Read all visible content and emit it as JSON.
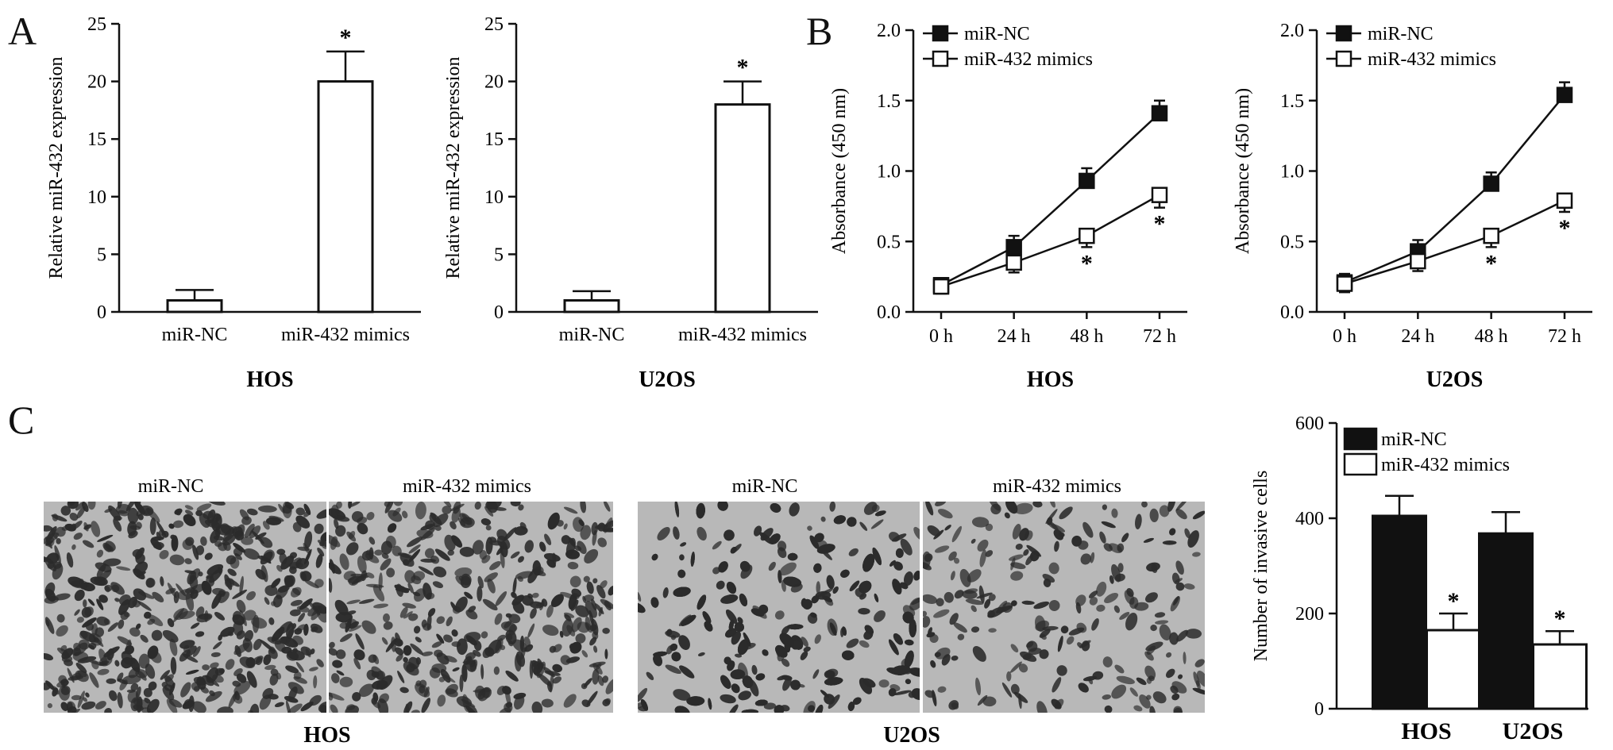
{
  "panel_labels": {
    "a": "A",
    "b": "B",
    "c": "C"
  },
  "micrographs": {
    "hos": {
      "label_left": "miR-NC",
      "label_right": "miR-432 mimics",
      "cell_line": "HOS"
    },
    "u2os": {
      "label_left": "miR-NC",
      "label_right": "miR-432 mimics",
      "cell_line": "U2OS"
    },
    "colors": {
      "background": "#b8b8b8",
      "cells": "#2b2b2b"
    }
  },
  "chart_data": [
    {
      "id": "a1",
      "type": "bar",
      "categories": [
        "miR-NC",
        "miR-432 mimics"
      ],
      "values": [
        1.0,
        20.0
      ],
      "errors": [
        0.9,
        2.6
      ],
      "significance": [
        "",
        "*"
      ],
      "bar_fill": [
        "#ffffff",
        "#ffffff"
      ],
      "xlabel": "HOS",
      "ylabel": "Relative miR-432 expression",
      "ylim": [
        0,
        25
      ],
      "yticks": [
        0,
        5,
        10,
        15,
        20,
        25
      ]
    },
    {
      "id": "a2",
      "type": "bar",
      "categories": [
        "miR-NC",
        "miR-432 mimics"
      ],
      "values": [
        1.0,
        18.0
      ],
      "errors": [
        0.8,
        2.0
      ],
      "significance": [
        "",
        "*"
      ],
      "bar_fill": [
        "#ffffff",
        "#ffffff"
      ],
      "xlabel": "U2OS",
      "ylabel": "Relative miR-432 expression",
      "ylim": [
        0,
        25
      ],
      "yticks": [
        0,
        5,
        10,
        15,
        20,
        25
      ]
    },
    {
      "id": "b1",
      "type": "line",
      "x": [
        "0 h",
        "24 h",
        "48 h",
        "72 h"
      ],
      "series": [
        {
          "name": "miR-NC",
          "values": [
            0.19,
            0.46,
            0.93,
            1.41
          ],
          "errors": [
            0.05,
            0.08,
            0.09,
            0.09
          ],
          "marker": "filled-square"
        },
        {
          "name": "miR-432 mimics",
          "values": [
            0.18,
            0.35,
            0.54,
            0.83
          ],
          "errors": [
            0.05,
            0.07,
            0.08,
            0.09
          ],
          "marker": "open-square"
        }
      ],
      "significance": [
        "",
        "",
        "*",
        "*"
      ],
      "xlabel": "HOS",
      "ylabel": "Absorbance (450 nm)",
      "ylim": [
        0,
        2.0
      ],
      "yticks": [
        "0.0",
        "0.5",
        "1.0",
        "1.5",
        "2.0"
      ],
      "legend": "top-left"
    },
    {
      "id": "b2",
      "type": "line",
      "x": [
        "0 h",
        "24 h",
        "48 h",
        "72 h"
      ],
      "series": [
        {
          "name": "miR-NC",
          "values": [
            0.21,
            0.43,
            0.91,
            1.54
          ],
          "errors": [
            0.06,
            0.08,
            0.08,
            0.09
          ],
          "marker": "filled-square"
        },
        {
          "name": "miR-432 mimics",
          "values": [
            0.2,
            0.36,
            0.54,
            0.79
          ],
          "errors": [
            0.06,
            0.07,
            0.08,
            0.08
          ],
          "marker": "open-square"
        }
      ],
      "significance": [
        "",
        "",
        "*",
        "*"
      ],
      "xlabel": "U2OS",
      "ylabel": "Absorbance (450 nm)",
      "ylim": [
        0,
        2.0
      ],
      "yticks": [
        "0.0",
        "0.5",
        "1.0",
        "1.5",
        "2.0"
      ],
      "legend": "top-left"
    },
    {
      "id": "c",
      "type": "bar",
      "categories": [
        "HOS",
        "U2OS"
      ],
      "series": [
        {
          "name": "miR-NC",
          "values": [
            405,
            368
          ],
          "errors": [
            42,
            45
          ],
          "fill": "#111111"
        },
        {
          "name": "miR-432 mimics",
          "values": [
            165,
            135
          ],
          "errors": [
            35,
            28
          ],
          "fill": "#ffffff"
        }
      ],
      "significance": [
        "*",
        "*"
      ],
      "ylabel": "Number of invasive cells",
      "ylim": [
        0,
        600
      ],
      "yticks": [
        0,
        200,
        400,
        600
      ],
      "legend": "top-left"
    }
  ]
}
